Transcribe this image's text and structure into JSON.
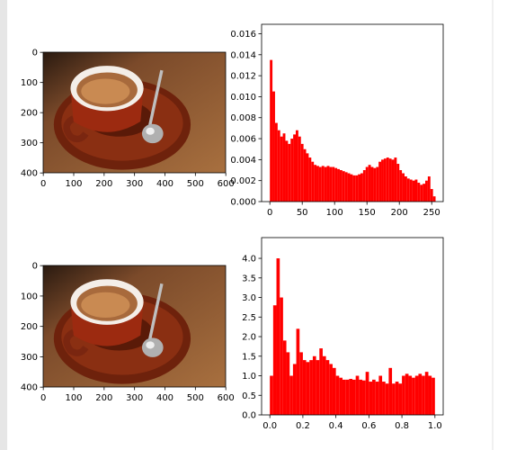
{
  "chart_data": [
    {
      "type": "image",
      "xlim": [
        -0.5,
        599.5
      ],
      "ylim": [
        399.5,
        -0.5
      ],
      "xticks": [
        0,
        100,
        200,
        300,
        400,
        500,
        600
      ],
      "yticks": [
        0,
        100,
        200,
        300,
        400
      ]
    },
    {
      "type": "histogram",
      "color": "#ff0000",
      "bins": [
        0,
        4,
        8,
        12,
        16,
        20,
        24,
        28,
        32,
        36,
        40,
        44,
        48,
        52,
        56,
        60,
        64,
        68,
        72,
        76,
        80,
        84,
        88,
        92,
        96,
        100,
        104,
        108,
        112,
        116,
        120,
        124,
        128,
        132,
        136,
        140,
        144,
        148,
        152,
        156,
        160,
        164,
        168,
        172,
        176,
        180,
        184,
        188,
        192,
        196,
        200,
        204,
        208,
        212,
        216,
        220,
        224,
        228,
        232,
        236,
        240,
        244,
        248,
        252,
        256
      ],
      "values": [
        0.0135,
        0.0105,
        0.0075,
        0.0068,
        0.0062,
        0.0065,
        0.0058,
        0.0055,
        0.006,
        0.0064,
        0.0068,
        0.0062,
        0.0055,
        0.005,
        0.0046,
        0.0042,
        0.0038,
        0.0035,
        0.0034,
        0.0033,
        0.0034,
        0.0033,
        0.0034,
        0.0033,
        0.0033,
        0.0032,
        0.0031,
        0.003,
        0.0029,
        0.0028,
        0.0027,
        0.0026,
        0.0025,
        0.0025,
        0.0026,
        0.0027,
        0.003,
        0.0033,
        0.0035,
        0.0033,
        0.0032,
        0.0033,
        0.0038,
        0.004,
        0.0041,
        0.0042,
        0.0041,
        0.004,
        0.0042,
        0.0036,
        0.003,
        0.0027,
        0.0024,
        0.0022,
        0.0021,
        0.002,
        0.0021,
        0.0018,
        0.0016,
        0.0017,
        0.002,
        0.0024,
        0.0012,
        0.0005
      ],
      "xlim": [
        -12.75,
        267.75
      ],
      "ylim": [
        0,
        0.0169
      ],
      "xticks": [
        0,
        50,
        100,
        150,
        200,
        250
      ],
      "yticks": [
        {
          "value": 0,
          "label": "0.000"
        },
        {
          "value": 0.002,
          "label": "0.002"
        },
        {
          "value": 0.004,
          "label": "0.004"
        },
        {
          "value": 0.006,
          "label": "0.006"
        },
        {
          "value": 0.008,
          "label": "0.008"
        },
        {
          "value": 0.01,
          "label": "0.010"
        },
        {
          "value": 0.012,
          "label": "0.012"
        },
        {
          "value": 0.014,
          "label": "0.014"
        },
        {
          "value": 0.016,
          "label": "0.016"
        }
      ]
    },
    {
      "type": "image",
      "xlim": [
        -0.5,
        599.5
      ],
      "ylim": [
        399.5,
        -0.5
      ],
      "xticks": [
        0,
        100,
        200,
        300,
        400,
        500,
        600
      ],
      "yticks": [
        0,
        100,
        200,
        300,
        400
      ]
    },
    {
      "type": "histogram",
      "color": "#ff0000",
      "bins": [
        0,
        0.02,
        0.04,
        0.06,
        0.08,
        0.1,
        0.12,
        0.14,
        0.16,
        0.18,
        0.2,
        0.22,
        0.24,
        0.26,
        0.28,
        0.3,
        0.32,
        0.34,
        0.36,
        0.38,
        0.4,
        0.42,
        0.44,
        0.46,
        0.48,
        0.5,
        0.52,
        0.54,
        0.56,
        0.58,
        0.6,
        0.62,
        0.64,
        0.66,
        0.68,
        0.7,
        0.72,
        0.74,
        0.76,
        0.78,
        0.8,
        0.82,
        0.84,
        0.86,
        0.88,
        0.9,
        0.92,
        0.94,
        0.96,
        0.98,
        1
      ],
      "values": [
        1.0,
        2.8,
        4.0,
        3.0,
        1.9,
        1.6,
        1.0,
        1.3,
        2.2,
        1.6,
        1.4,
        1.35,
        1.4,
        1.5,
        1.4,
        1.7,
        1.5,
        1.4,
        1.3,
        1.2,
        1.0,
        0.95,
        0.9,
        0.9,
        0.92,
        0.9,
        1.0,
        0.9,
        0.88,
        1.1,
        0.85,
        0.9,
        0.85,
        1.0,
        0.85,
        0.8,
        1.2,
        0.8,
        0.85,
        0.8,
        1.0,
        1.05,
        1.0,
        0.95,
        1.0,
        1.05,
        1.0,
        1.1,
        1.0,
        0.95
      ],
      "xlim": [
        -0.05,
        1.05
      ],
      "ylim": [
        0,
        4.53
      ],
      "xticks": [
        {
          "value": 0,
          "label": "0.0"
        },
        0.2,
        0.4,
        0.6,
        0.8,
        {
          "value": 1,
          "label": "1.0"
        }
      ],
      "yticks": [
        {
          "value": 0,
          "label": "0.0"
        },
        0.5,
        {
          "value": 1,
          "label": "1.0"
        },
        1.5,
        {
          "value": 2,
          "label": "2.0"
        },
        2.5,
        {
          "value": 3,
          "label": "3.0"
        },
        3.5,
        {
          "value": 4,
          "label": "4.0"
        }
      ]
    }
  ]
}
